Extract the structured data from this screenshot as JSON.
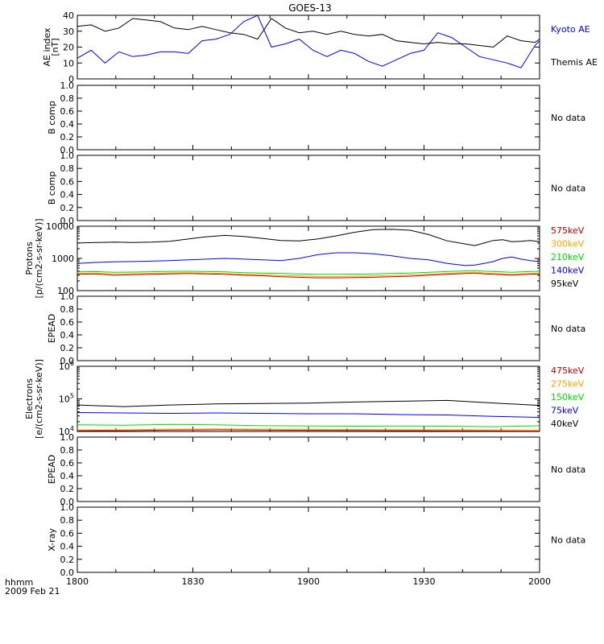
{
  "title": "GOES-13",
  "time_axis": {
    "unit_label": "hhmm",
    "date_label": "2009 Feb 21",
    "ticks": [
      "1800",
      "1830",
      "1900",
      "1930",
      "2000"
    ]
  },
  "colors": {
    "black": "#000000",
    "blue": "#0000ff",
    "green": "#00e000",
    "orange": "#ffa500",
    "red": "#c00000"
  },
  "chart_data": [
    {
      "id": "ae",
      "type": "line",
      "ylabel": "AE index [nT]",
      "ylim": [
        0,
        40
      ],
      "yticks": [
        "0",
        "10",
        "20",
        "30",
        "40"
      ],
      "x": [
        0,
        0.03,
        0.06,
        0.09,
        0.12,
        0.15,
        0.18,
        0.21,
        0.24,
        0.27,
        0.3,
        0.33,
        0.36,
        0.39,
        0.42,
        0.45,
        0.48,
        0.51,
        0.54,
        0.57,
        0.6,
        0.63,
        0.66,
        0.69,
        0.72,
        0.75,
        0.78,
        0.81,
        0.84,
        0.87,
        0.9,
        0.93,
        0.96,
        0.99,
        1.0
      ],
      "series": [
        {
          "name": "Kyoto AE",
          "color": "#0000ff",
          "values": [
            13,
            18,
            10,
            17,
            14,
            15,
            17,
            17,
            16,
            24,
            25,
            28,
            36,
            41,
            20,
            22,
            25,
            18,
            14,
            18,
            16,
            11,
            8,
            12,
            16,
            18,
            29,
            26,
            20,
            14,
            12,
            10,
            7,
            21,
            24
          ]
        },
        {
          "name": "Themis AE",
          "color": "#000000",
          "values": [
            33,
            34,
            30,
            32,
            38,
            37,
            36,
            32,
            31,
            33,
            31,
            29,
            28,
            25,
            38,
            32,
            29,
            30,
            28,
            30,
            28,
            27,
            28,
            24,
            23,
            22,
            23,
            22,
            22,
            21,
            20,
            27,
            24,
            23,
            25
          ]
        }
      ]
    },
    {
      "id": "bcomp1",
      "type": "line",
      "ylabel": "B comp",
      "ylim": [
        0,
        1
      ],
      "yticks": [
        "0.0",
        "0.2",
        "0.4",
        "0.6",
        "0.8",
        "1.0"
      ],
      "status": "No data"
    },
    {
      "id": "bcomp2",
      "type": "line",
      "ylabel": "B comp",
      "ylim": [
        0,
        1
      ],
      "yticks": [
        "0.0",
        "0.2",
        "0.4",
        "0.6",
        "0.8",
        "1.0"
      ],
      "status": "No data"
    },
    {
      "id": "protons",
      "type": "line",
      "scale": "log",
      "ylabel": "Protons [p/(cm2-s-sr-keV)]",
      "ylim": [
        100,
        10000
      ],
      "yticks": [
        "100",
        "1000",
        "10000"
      ],
      "x": [
        0,
        0.04,
        0.08,
        0.12,
        0.16,
        0.2,
        0.24,
        0.28,
        0.32,
        0.36,
        0.4,
        0.44,
        0.48,
        0.52,
        0.56,
        0.6,
        0.64,
        0.68,
        0.72,
        0.76,
        0.8,
        0.84,
        0.86,
        0.88,
        0.9,
        0.92,
        0.94,
        0.96,
        0.98,
        1.0
      ],
      "series": [
        {
          "name": "575keV",
          "color": "#c00000",
          "values": [
            320,
            330,
            300,
            310,
            320,
            330,
            340,
            330,
            320,
            300,
            290,
            270,
            260,
            250,
            250,
            255,
            260,
            270,
            280,
            300,
            320,
            340,
            350,
            330,
            320,
            310,
            300,
            310,
            320,
            330
          ]
        },
        {
          "name": "300keV",
          "color": "#ffa500",
          "values": [
            345,
            350,
            330,
            335,
            345,
            355,
            360,
            350,
            340,
            320,
            310,
            295,
            285,
            275,
            275,
            280,
            285,
            295,
            305,
            325,
            345,
            365,
            375,
            355,
            345,
            335,
            325,
            335,
            345,
            355
          ]
        },
        {
          "name": "210keV",
          "color": "#00e000",
          "values": [
            380,
            390,
            370,
            375,
            385,
            395,
            400,
            390,
            380,
            360,
            350,
            340,
            330,
            320,
            320,
            325,
            330,
            340,
            350,
            370,
            390,
            410,
            420,
            400,
            390,
            380,
            370,
            380,
            390,
            400
          ]
        },
        {
          "name": "140keV",
          "color": "#0000ff",
          "values": [
            700,
            750,
            780,
            800,
            820,
            850,
            900,
            950,
            1000,
            950,
            900,
            850,
            1000,
            1300,
            1500,
            1500,
            1400,
            1200,
            1000,
            900,
            700,
            600,
            620,
            700,
            800,
            1000,
            1100,
            950,
            850,
            800
          ]
        },
        {
          "name": "95keV",
          "color": "#000000",
          "values": [
            3000,
            3100,
            3200,
            3100,
            3200,
            3400,
            4000,
            4700,
            5200,
            4800,
            4200,
            3600,
            3500,
            4000,
            5000,
            6500,
            7800,
            8000,
            7500,
            5500,
            3500,
            2800,
            2500,
            3000,
            3600,
            3800,
            3300,
            3400,
            3600,
            3300
          ]
        }
      ]
    },
    {
      "id": "epead1",
      "type": "line",
      "ylabel": "EPEAD",
      "ylim": [
        0,
        1
      ],
      "yticks": [
        "0.0",
        "0.2",
        "0.4",
        "0.6",
        "0.8",
        "1.0"
      ],
      "status": "No data"
    },
    {
      "id": "electrons",
      "type": "line",
      "scale": "log",
      "ylabel": "Electrons [e/(cm2-s-sr-keV)]",
      "ylim": [
        10000,
        1000000
      ],
      "yticks": [
        "10^4",
        "10^5",
        "10^6"
      ],
      "x": [
        0,
        0.1,
        0.2,
        0.3,
        0.4,
        0.5,
        0.6,
        0.7,
        0.8,
        0.9,
        1.0
      ],
      "series": [
        {
          "name": "475keV",
          "color": "#c00000",
          "values": [
            10500,
            10600,
            11000,
            11200,
            11000,
            10800,
            10700,
            10600,
            10500,
            10400,
            10300
          ]
        },
        {
          "name": "275keV",
          "color": "#ffa500",
          "values": [
            11200,
            11300,
            11800,
            12000,
            11800,
            11600,
            11500,
            11400,
            11300,
            11200,
            11100
          ]
        },
        {
          "name": "150keV",
          "color": "#00e000",
          "values": [
            16000,
            15500,
            16500,
            16000,
            15000,
            14800,
            14500,
            14700,
            14500,
            14000,
            15000
          ]
        },
        {
          "name": "75keV",
          "color": "#0000ff",
          "values": [
            38000,
            37000,
            36000,
            37000,
            36000,
            35000,
            35000,
            33000,
            32000,
            29000,
            27000
          ]
        },
        {
          "name": "40keV",
          "color": "#000000",
          "values": [
            65000,
            58000,
            65000,
            70000,
            72000,
            74000,
            80000,
            85000,
            90000,
            75000,
            63000
          ]
        }
      ]
    },
    {
      "id": "epead2",
      "type": "line",
      "ylabel": "EPEAD",
      "ylim": [
        0,
        1
      ],
      "yticks": [
        "0.0",
        "0.2",
        "0.4",
        "0.6",
        "0.8",
        "1.0"
      ],
      "status": "No data"
    },
    {
      "id": "xray",
      "type": "line",
      "ylabel": "X-ray",
      "ylim": [
        0,
        1
      ],
      "yticks": [
        "0.0",
        "0.2",
        "0.4",
        "0.6",
        "0.8",
        "1.0"
      ],
      "status": "No data"
    }
  ]
}
